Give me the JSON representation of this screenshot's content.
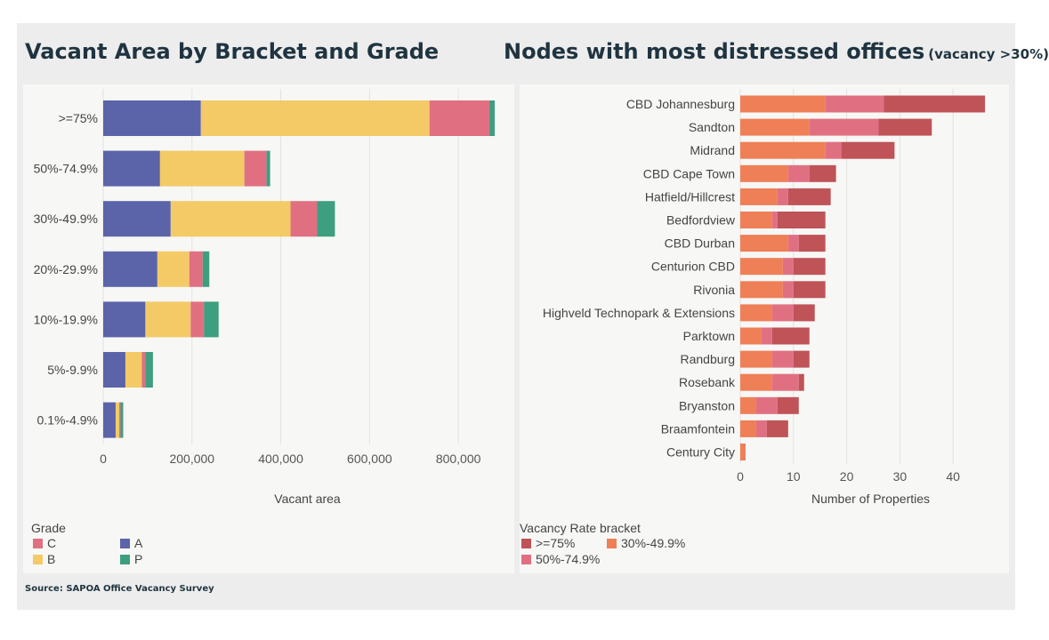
{
  "titles": {
    "left": "Vacant Area by Bracket and Grade",
    "right": "Nodes with most distressed offices",
    "right_sub": "(vacancy >30%)"
  },
  "source": "Source: SAPOA Office Vacancy Survey",
  "legends": {
    "grade": {
      "title": "Grade",
      "items": [
        {
          "label": "C",
          "color": "#e07081"
        },
        {
          "label": "A",
          "color": "#5b64a8"
        },
        {
          "label": "B",
          "color": "#f3ca66"
        },
        {
          "label": "P",
          "color": "#3e9e80"
        }
      ]
    },
    "vacancy": {
      "title": "Vacancy Rate bracket",
      "items": [
        {
          "label": ">=75%",
          "color": "#bf5358"
        },
        {
          "label": "30%-49.9%",
          "color": "#ef7f57"
        },
        {
          "label": "50%-74.9%",
          "color": "#e07081"
        }
      ]
    }
  },
  "chart_data": [
    {
      "type": "bar",
      "orientation": "horizontal",
      "stacked": true,
      "title": "Vacant Area by Bracket and Grade",
      "xlabel": "Vacant area",
      "xlim": [
        0,
        920000
      ],
      "xticks": [
        0,
        200000,
        400000,
        600000,
        800000
      ],
      "xtick_labels": [
        "0",
        "200,000",
        "400,000",
        "600,000",
        "800,000"
      ],
      "categories": [
        ">=75%",
        "50%-74.9%",
        "30%-49.9%",
        "20%-29.9%",
        "10%-19.9%",
        "5%-9.9%",
        "0.1%-4.9%"
      ],
      "series": [
        {
          "name": "A",
          "color": "#5b64a8",
          "values": [
            220000,
            128000,
            152000,
            122000,
            95000,
            50000,
            28000
          ]
        },
        {
          "name": "B",
          "color": "#f3ca66",
          "values": [
            515000,
            190000,
            270000,
            72000,
            102000,
            37000,
            8000
          ]
        },
        {
          "name": "C",
          "color": "#e07081",
          "values": [
            135000,
            50000,
            60000,
            30000,
            30000,
            8000,
            3000
          ]
        },
        {
          "name": "P",
          "color": "#3e9e80",
          "values": [
            12000,
            8000,
            40000,
            15000,
            33000,
            17000,
            6000
          ]
        }
      ],
      "grid": true,
      "legend_position": "bottom-left"
    },
    {
      "type": "bar",
      "orientation": "horizontal",
      "stacked": true,
      "title": "Nodes with most distressed offices",
      "xlabel": "Number of Properties",
      "xlim": [
        0,
        49
      ],
      "xticks": [
        0,
        10,
        20,
        30,
        40
      ],
      "xtick_labels": [
        "0",
        "10",
        "20",
        "30",
        "40"
      ],
      "categories": [
        "CBD Johannesburg",
        "Sandton",
        "Midrand",
        "CBD Cape Town",
        "Hatfield/Hillcrest",
        "Bedfordview",
        "CBD Durban",
        "Centurion CBD",
        "Rivonia",
        "Highveld Technopark & Extensions",
        "Parktown",
        "Randburg",
        "Rosebank",
        "Bryanston",
        "Braamfontein",
        "Century City"
      ],
      "series": [
        {
          "name": "30%-49.9%",
          "color": "#ef7f57",
          "values": [
            16,
            13,
            16,
            9,
            7,
            6,
            9,
            8,
            8,
            6,
            4,
            6,
            6,
            3,
            3,
            1
          ]
        },
        {
          "name": "50%-74.9%",
          "color": "#e07081",
          "values": [
            11,
            13,
            3,
            4,
            2,
            1,
            2,
            2,
            2,
            4,
            2,
            4,
            5,
            4,
            2,
            0
          ]
        },
        {
          "name": ">=75%",
          "color": "#bf5358",
          "values": [
            19,
            10,
            10,
            5,
            8,
            9,
            5,
            6,
            6,
            4,
            7,
            3,
            1,
            4,
            4,
            0
          ]
        }
      ],
      "grid": true,
      "legend_position": "bottom-left"
    }
  ]
}
